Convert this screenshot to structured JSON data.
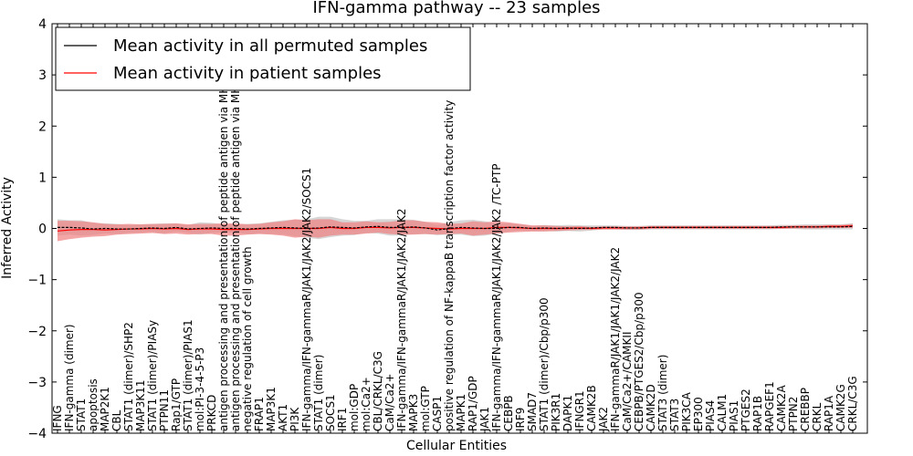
{
  "chart_data": {
    "type": "line",
    "title": "IFN-gamma pathway -- 23 samples",
    "xlabel": "Cellular Entities",
    "ylabel": "Inferred Activity",
    "ylim": [
      -4,
      4
    ],
    "yticks": [
      -4,
      -3,
      -2,
      -1,
      0,
      1,
      2,
      3,
      4
    ],
    "ytick_labels": [
      "−4",
      "−3",
      "−2",
      "−1",
      "0",
      "1",
      "2",
      "3",
      "4"
    ],
    "legend_position": "top-left",
    "categories": [
      "IFNG",
      "IFN-gamma (dimer)",
      "STAT1",
      "apoptosis",
      "MAP2K1",
      "CBL",
      "STAT1 (dimer)/SHP2",
      "MAP3K11",
      "STAT1 (dimer)/PIASy",
      "PTPN11",
      "Rap1/GTP",
      "STAT1 (dimer)/PIAS1",
      "mol:PI-3-4-5-P3",
      "PRKCD",
      "antigen processing and presentation of peptide antigen via MHC class I",
      "antigen processing and presentation of peptide antigen via MHC class II",
      "negative regulation of cell growth",
      "FRAP1",
      "MAP3K1",
      "AKT1",
      "PI3K",
      "IFN-gamma/IFN-gammaR/JAK1/JAK2/JAK2/SOCS1",
      "STAT1 (dimer)",
      "SOCS1",
      "IRF1",
      "mol:GDP",
      "mol:Ca2+",
      "CBL/CRKL/C3G",
      "CaM/Ca2+",
      "IFN-gamma/IFN-gammaR/JAK1/JAK2/JAK2",
      "MAPK3",
      "mol:GTP",
      "CASP1",
      "positive regulation of NF-kappaB transcription factor activity",
      "MAPK1",
      "RAP1/GDP",
      "JAK1",
      "IFN-gamma/IFN-gammaR/JAK1/JAK2/JAK2  /TC-PTP",
      "CEBPB",
      "IRF9",
      "SMAD7",
      "STAT1 (dimer)/Cbp/p300",
      "PIK3R1",
      "DAPK1",
      "IFNGR1",
      "CAMK2B",
      "JAK2",
      "IFN-gammaR/JAK1/JAK1/JAK2/JAK2",
      "CaM/Ca2+/CAMKII",
      "CEBPB/PTGES2/Cbp/p300",
      "CAMK2D",
      "STAT3 (dimer)",
      "STAT3",
      "PIK3CA",
      "EP300",
      "PIAS4",
      "CALM1",
      "PIAS1",
      "PTGES2",
      "RAP1B",
      "RAPGEF1",
      "CAMK2A",
      "PTPN2",
      "CREBBP",
      "CRKL",
      "RAP1A",
      "CAMK2G",
      "CRKL/C3G"
    ],
    "series": [
      {
        "name": "Mean activity in all permuted samples",
        "color": "#000000",
        "band_color": "#c8c8c8",
        "values": [
          0.02,
          0.02,
          0.01,
          -0.01,
          0.0,
          -0.01,
          -0.01,
          0.0,
          0.01,
          0.0,
          0.02,
          -0.01,
          0.0,
          0.01,
          0.0,
          0.0,
          -0.01,
          0.0,
          0.01,
          0.02,
          0.01,
          0.0,
          0.01,
          0.03,
          0.02,
          0.01,
          0.03,
          0.04,
          0.02,
          0.02,
          0.03,
          0.01,
          -0.03,
          0.0,
          0.02,
          0.01,
          0.0,
          0.0,
          0.02,
          0.02,
          0.0,
          0.01,
          0.0,
          0.01,
          0.0,
          0.01,
          0.02,
          0.02,
          0.01,
          0.01,
          0.02,
          0.02,
          0.02,
          0.02,
          0.02,
          0.02,
          0.02,
          0.02,
          0.02,
          0.02,
          0.02,
          0.03,
          0.03,
          0.03,
          0.03,
          0.03,
          0.03,
          0.04
        ],
        "spread": [
          0.16,
          0.14,
          0.15,
          0.12,
          0.1,
          0.1,
          0.08,
          0.08,
          0.08,
          0.1,
          0.08,
          0.08,
          0.12,
          0.1,
          0.08,
          0.08,
          0.1,
          0.1,
          0.12,
          0.14,
          0.16,
          0.18,
          0.22,
          0.2,
          0.16,
          0.14,
          0.12,
          0.14,
          0.16,
          0.16,
          0.14,
          0.12,
          0.1,
          0.12,
          0.14,
          0.16,
          0.14,
          0.1,
          0.08,
          0.06,
          0.05,
          0.06,
          0.06,
          0.06,
          0.06,
          0.05,
          0.04,
          0.04,
          0.04,
          0.04,
          0.04,
          0.04,
          0.04,
          0.04,
          0.04,
          0.04,
          0.04,
          0.04,
          0.04,
          0.04,
          0.04,
          0.04,
          0.04,
          0.05,
          0.05,
          0.05,
          0.05,
          0.06
        ]
      },
      {
        "name": "Mean activity in patient samples",
        "color": "#ff0000",
        "band_color": "#f08080",
        "values": [
          -0.05,
          -0.03,
          -0.02,
          -0.02,
          -0.03,
          -0.02,
          -0.01,
          -0.01,
          0.0,
          -0.01,
          0.0,
          -0.02,
          -0.01,
          -0.01,
          -0.02,
          -0.02,
          -0.02,
          -0.01,
          0.0,
          0.0,
          0.0,
          0.0,
          0.0,
          0.02,
          0.0,
          0.0,
          0.02,
          0.02,
          0.01,
          0.02,
          0.02,
          0.01,
          0.0,
          -0.01,
          0.0,
          0.0,
          0.0,
          0.02,
          0.02,
          0.01,
          0.0,
          0.0,
          0.0,
          0.0,
          0.01,
          0.0,
          0.01,
          0.01,
          0.01,
          0.01,
          0.02,
          0.02,
          0.02,
          0.02,
          0.02,
          0.02,
          0.02,
          0.02,
          0.02,
          0.02,
          0.02,
          0.02,
          0.03,
          0.03,
          0.03,
          0.04,
          0.04,
          0.05
        ],
        "spread": [
          0.2,
          0.18,
          0.16,
          0.14,
          0.12,
          0.1,
          0.1,
          0.09,
          0.09,
          0.1,
          0.1,
          0.1,
          0.1,
          0.1,
          0.12,
          0.12,
          0.1,
          0.1,
          0.12,
          0.14,
          0.18,
          0.16,
          0.18,
          0.16,
          0.12,
          0.12,
          0.12,
          0.1,
          0.12,
          0.14,
          0.14,
          0.12,
          0.12,
          0.1,
          0.1,
          0.14,
          0.12,
          0.12,
          0.1,
          0.08,
          0.06,
          0.06,
          0.05,
          0.04,
          0.04,
          0.03,
          0.03,
          0.03,
          0.03,
          0.03,
          0.03,
          0.03,
          0.03,
          0.03,
          0.03,
          0.03,
          0.03,
          0.03,
          0.03,
          0.03,
          0.03,
          0.03,
          0.03,
          0.03,
          0.03,
          0.03,
          0.03,
          0.04
        ]
      }
    ]
  }
}
